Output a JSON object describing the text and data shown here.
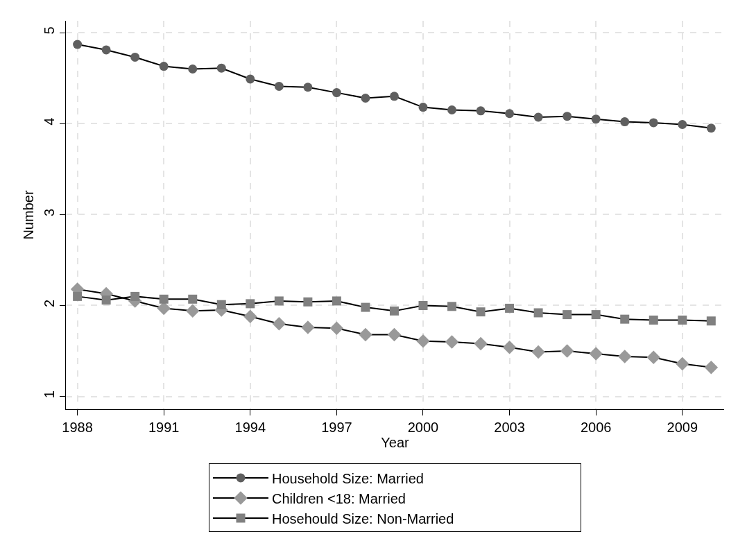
{
  "chart_data": {
    "type": "line",
    "xlabel": "Year",
    "ylabel": "Number",
    "x": [
      1988,
      1989,
      1990,
      1991,
      1992,
      1993,
      1994,
      1995,
      1996,
      1997,
      1998,
      1999,
      2000,
      2001,
      2002,
      2003,
      2004,
      2005,
      2006,
      2007,
      2008,
      2009,
      2010
    ],
    "series": [
      {
        "name": "Household Size: Married",
        "color": "#5f5f5f",
        "marker": "circle",
        "values": [
          4.87,
          4.81,
          4.73,
          4.63,
          4.6,
          4.61,
          4.49,
          4.41,
          4.4,
          4.34,
          4.28,
          4.3,
          4.18,
          4.15,
          4.14,
          4.11,
          4.07,
          4.08,
          4.05,
          4.02,
          4.01,
          3.99,
          3.95
        ]
      },
      {
        "name": "Children <18: Married",
        "color": "#999999",
        "marker": "diamond",
        "values": [
          2.18,
          2.13,
          2.05,
          1.97,
          1.94,
          1.95,
          1.88,
          1.8,
          1.76,
          1.75,
          1.68,
          1.68,
          1.61,
          1.6,
          1.58,
          1.54,
          1.49,
          1.5,
          1.47,
          1.44,
          1.43,
          1.36,
          1.32
        ]
      },
      {
        "name": "Hosehould Size: Non-Married",
        "color": "#808080",
        "marker": "square",
        "values": [
          2.1,
          2.06,
          2.1,
          2.07,
          2.07,
          2.01,
          2.02,
          2.05,
          2.04,
          2.05,
          1.98,
          1.94,
          2.0,
          1.99,
          1.93,
          1.97,
          1.92,
          1.9,
          1.9,
          1.85,
          1.84,
          1.84,
          1.83
        ]
      }
    ],
    "xlim": [
      1987.6,
      2010.45
    ],
    "xticks": [
      1988,
      1991,
      1994,
      1997,
      2000,
      2003,
      2006,
      2009
    ],
    "ylim": [
      0.86,
      5.13
    ],
    "yticks": [
      1,
      2,
      3,
      4,
      5
    ],
    "grid": true,
    "legend": "bottom",
    "line_style": "solid"
  }
}
